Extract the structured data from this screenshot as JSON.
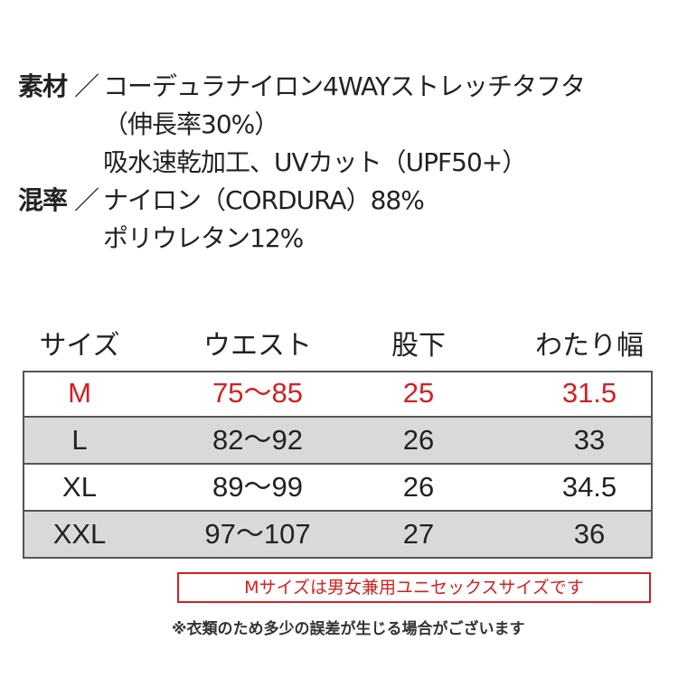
{
  "spec": {
    "items": [
      {
        "label": "素材",
        "separator": "／",
        "lines": [
          "コーデュラナイロン4WAYストレッチタフタ",
          "（伸長率30%）",
          "吸水速乾加工、UVカット（UPF50+）"
        ]
      },
      {
        "label": "混率",
        "separator": "／",
        "lines": [
          "ナイロン（CORDURA）88%",
          "ポリウレタン12%"
        ]
      }
    ]
  },
  "table": {
    "header": [
      "サイズ",
      "ウエスト",
      "股下",
      "わたり幅"
    ],
    "rows": [
      [
        "M",
        "75～85",
        "25",
        "31.5"
      ],
      [
        "L",
        "82～92",
        "26",
        "33"
      ],
      [
        "XL",
        "89～99",
        "26",
        "34.5"
      ],
      [
        "XXL",
        "97～107",
        "27",
        "36"
      ]
    ]
  },
  "note": "Mサイズは男女兼用ユニセックスサイズです",
  "footnote": "※衣類のため多少の誤差が生じる場合がございます"
}
